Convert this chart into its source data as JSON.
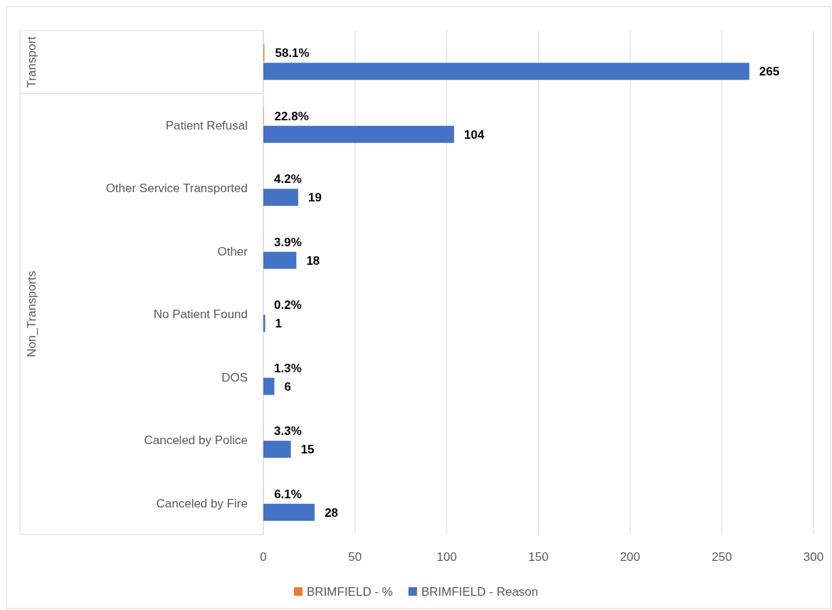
{
  "chart_data": {
    "type": "bar",
    "orientation": "horizontal",
    "categories": [
      null,
      "Patient Refusal",
      "Other Service Transported",
      "Other",
      "No Patient Found",
      "DOS",
      "Canceled by Police",
      "Canceled by Fire"
    ],
    "series": [
      {
        "name": "BRIMFIELD - %",
        "color": "#ed7d31",
        "values": [
          0.581,
          0.228,
          0.042,
          0.039,
          0.002,
          0.013,
          0.033,
          0.061
        ],
        "value_labels": [
          "58.1%",
          "22.8%",
          "4.2%",
          "3.9%",
          "0.2%",
          "1.3%",
          "3.3%",
          "6.1%"
        ]
      },
      {
        "name": "BRIMFIELD - Reason",
        "color": "#4472c4",
        "values": [
          265,
          104,
          19,
          18,
          1,
          6,
          15,
          28
        ],
        "value_labels": [
          "265",
          "104",
          "19",
          "18",
          "1",
          "6",
          "15",
          "28"
        ]
      }
    ],
    "xlim": [
      0,
      300
    ],
    "xticks": [
      0,
      50,
      100,
      150,
      200,
      250,
      300
    ],
    "annotations": [
      "Transport",
      "Non_Transports"
    ],
    "grid": "x",
    "legend": "bottom"
  }
}
